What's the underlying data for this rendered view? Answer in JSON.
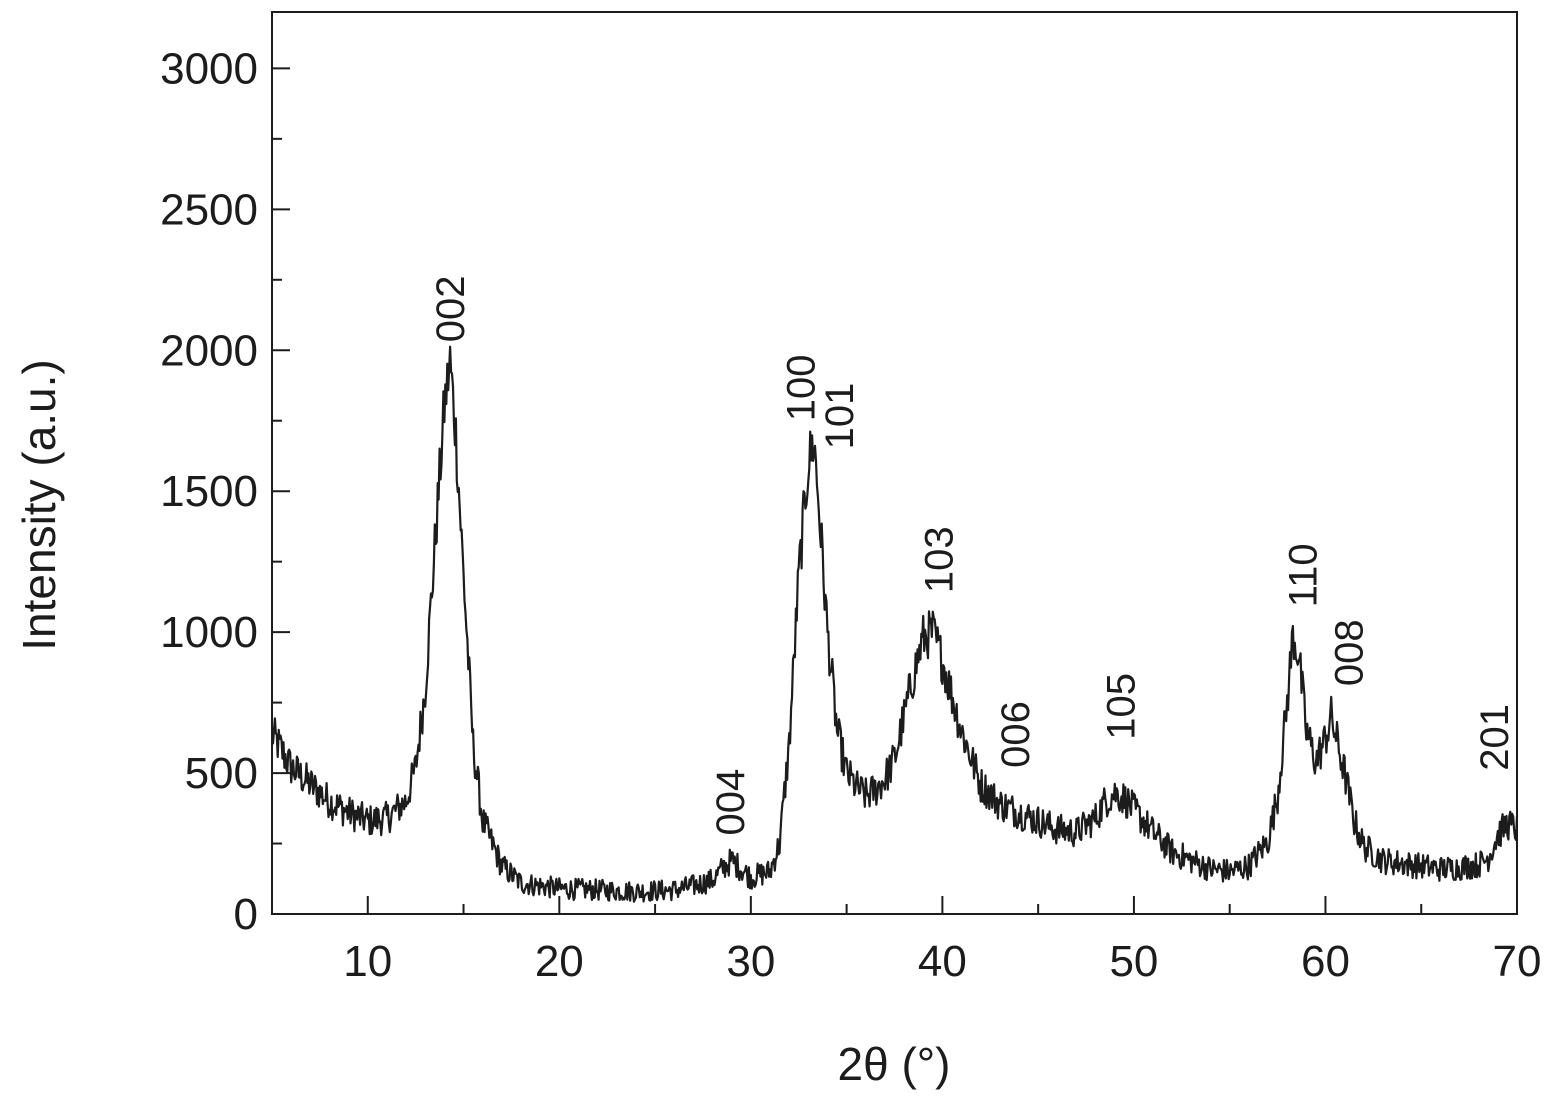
{
  "chart_data": {
    "type": "line",
    "title": "",
    "xlabel": "2θ (°)",
    "ylabel": "Intensity (a.u.)",
    "xlim": [
      5,
      70
    ],
    "ylim": [
      0,
      3200
    ],
    "grid": false,
    "x_ticks": [
      10,
      20,
      30,
      40,
      50,
      60,
      70
    ],
    "y_ticks": [
      0,
      500,
      1000,
      1500,
      2000,
      2500,
      3000
    ],
    "x_minor_step": 5,
    "y_minor_step": 250,
    "line_color": "#1c1c1c",
    "series": [
      {
        "x": [
          5,
          6,
          7,
          8,
          9,
          10,
          11,
          12,
          12.5,
          13,
          13.5,
          14,
          14.3,
          14.6,
          15,
          15.5,
          16,
          17,
          18,
          20,
          22,
          24,
          26,
          27,
          28,
          28.5,
          29,
          29.5,
          30,
          31,
          31.5,
          32,
          32.5,
          33,
          33.3,
          33.6,
          34,
          34.5,
          35,
          35.5,
          36,
          36.5,
          37,
          37.5,
          38,
          38.5,
          39,
          39.5,
          40,
          41,
          42,
          43,
          44,
          45,
          46,
          47,
          48,
          48.5,
          49,
          49.5,
          50,
          51,
          52,
          53,
          54,
          55,
          56,
          57,
          57.5,
          58,
          58.3,
          58.6,
          59,
          59.5,
          60,
          60.3,
          61,
          61.5,
          62,
          63,
          64,
          65,
          66,
          67,
          68,
          68.5,
          69,
          69.5,
          70
        ],
        "y": [
          640,
          520,
          460,
          400,
          360,
          330,
          340,
          400,
          520,
          800,
          1300,
          1800,
          1960,
          1700,
          1200,
          600,
          330,
          170,
          110,
          90,
          85,
          80,
          85,
          100,
          120,
          160,
          190,
          160,
          130,
          150,
          250,
          600,
          1200,
          1600,
          1680,
          1400,
          1000,
          650,
          500,
          450,
          420,
          440,
          480,
          550,
          700,
          850,
          980,
          1000,
          900,
          650,
          460,
          390,
          360,
          330,
          300,
          290,
          340,
          400,
          430,
          410,
          370,
          290,
          220,
          190,
          160,
          150,
          170,
          260,
          420,
          750,
          990,
          920,
          650,
          540,
          620,
          700,
          500,
          330,
          240,
          190,
          180,
          170,
          160,
          165,
          175,
          200,
          280,
          320,
          300
        ]
      }
    ],
    "annotations": [
      {
        "text": "002",
        "x": 14.3,
        "y": 2000
      },
      {
        "text": "004",
        "x": 28.9,
        "y": 250
      },
      {
        "text": "100",
        "x": 32.6,
        "y": 1720
      },
      {
        "text": "101",
        "x": 34.6,
        "y": 1620
      },
      {
        "text": "103",
        "x": 39.8,
        "y": 1110
      },
      {
        "text": "006",
        "x": 43.8,
        "y": 490
      },
      {
        "text": "105",
        "x": 49.3,
        "y": 590
      },
      {
        "text": "110",
        "x": 58.8,
        "y": 1060
      },
      {
        "text": "008",
        "x": 61.2,
        "y": 780
      },
      {
        "text": "201",
        "x": 68.8,
        "y": 480
      }
    ]
  }
}
